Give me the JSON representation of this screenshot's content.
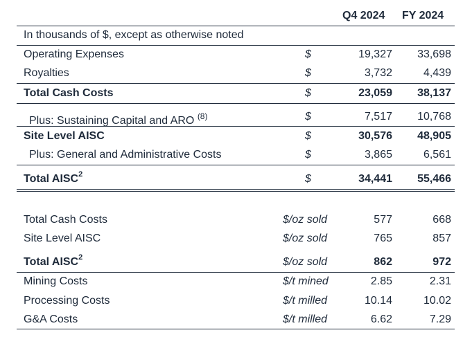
{
  "header": {
    "col1": "Q4 2024",
    "col2": "FY 2024"
  },
  "intro": "In thousands of $, except as otherwise noted",
  "cost_rows": [
    {
      "label": "Operating Expenses",
      "unit": "$",
      "q4": "19,327",
      "fy": "33,698",
      "bold": false
    },
    {
      "label": "Royalties",
      "unit": "$",
      "q4": "3,732",
      "fy": "4,439",
      "bold": false
    },
    {
      "label": "Total Cash Costs",
      "unit": "$",
      "q4": "23,059",
      "fy": "38,137",
      "bold": true
    },
    {
      "label": "Plus: Sustaining Capital and ARO",
      "note": "(8)",
      "unit": "$",
      "q4": "7,517",
      "fy": "10,768",
      "bold": false
    },
    {
      "label": "Site Level AISC",
      "unit": "$",
      "q4": "30,576",
      "fy": "48,905",
      "bold": true
    },
    {
      "label": "Plus: General and Administrative Costs",
      "unit": "$",
      "q4": "3,865",
      "fy": "6,561",
      "bold": false
    },
    {
      "label": "Total AISC",
      "sup": "2",
      "unit": "$",
      "q4": "34,441",
      "fy": "55,466",
      "bold": true
    }
  ],
  "unit_rows": [
    {
      "label": "Total Cash Costs",
      "unit": "$/oz sold",
      "q4": "577",
      "fy": "668",
      "bold": false
    },
    {
      "label": "Site Level AISC",
      "unit": "$/oz sold",
      "q4": "765",
      "fy": "857",
      "bold": false
    },
    {
      "label": "Total AISC",
      "sup": "2",
      "unit": "$/oz sold",
      "q4": "862",
      "fy": "972",
      "bold": true
    },
    {
      "label": "Mining Costs",
      "unit": "$/t mined",
      "q4": "2.85",
      "fy": "2.31",
      "bold": false
    },
    {
      "label": "Processing Costs",
      "unit": "$/t milled",
      "q4": "10.14",
      "fy": "10.02",
      "bold": false
    },
    {
      "label": "G&A Costs",
      "unit": "$/t milled",
      "q4": "6.62",
      "fy": "7.29",
      "bold": false
    }
  ]
}
